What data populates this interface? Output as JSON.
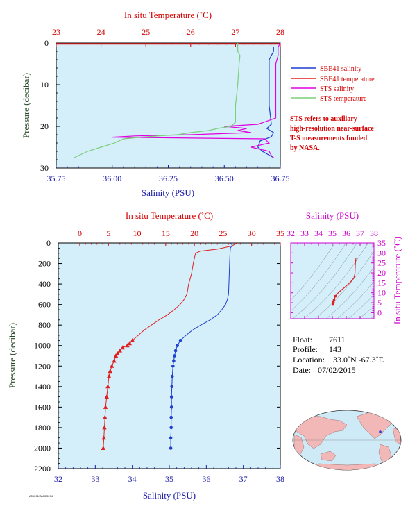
{
  "colors": {
    "salinity_axis": "#1a1aa8",
    "temperature_axis": "#d40000",
    "pressure_axis": "#2a4a2a",
    "inset_axis": "#cc00cc",
    "plot_bg": "#d4eefa",
    "sbe_salinity": "#1f3fd0",
    "sbe_temperature": "#e02020",
    "sts_salinity": "#e000e0",
    "sts_temperature": "#7ad07a"
  },
  "top_panel": {
    "temperature_title": "In situ Temperature (˚C)",
    "salinity_title": "Salinity (PSU)",
    "pressure_title": "Pressure (decibar)",
    "temperature_ticks": [
      "23",
      "24",
      "25",
      "26",
      "27",
      "28"
    ],
    "salinity_ticks": [
      "35.75",
      "36.00",
      "36.25",
      "36.50",
      "36.75"
    ],
    "pressure_ticks": [
      "0",
      "10",
      "20",
      "30"
    ]
  },
  "legend": {
    "items": [
      {
        "label": "SBE41 salinity",
        "color_key": "sbe_salinity"
      },
      {
        "label": "SBE41 temperature",
        "color_key": "sbe_temperature"
      },
      {
        "label": "STS salinity",
        "color_key": "sts_salinity"
      },
      {
        "label": "STS temperature",
        "color_key": "sts_temperature"
      }
    ]
  },
  "note": {
    "lines": [
      "STS refers to auxiliary",
      "high-resolution near-surface",
      "T-S measurements funded",
      "by NASA."
    ]
  },
  "main_panel": {
    "temperature_title": "In situ Temperature (˚C)",
    "salinity_title": "Salinity (PSU)",
    "pressure_title": "Pressure (decibar)",
    "temperature_ticks": [
      "0",
      "5",
      "10",
      "15",
      "20",
      "25",
      "30",
      "35"
    ],
    "salinity_ticks": [
      "32",
      "33",
      "34",
      "35",
      "36",
      "37",
      "38"
    ],
    "pressure_ticks": [
      "0",
      "200",
      "400",
      "600",
      "800",
      "1000",
      "1200",
      "1400",
      "1600",
      "1800",
      "2000",
      "2200"
    ]
  },
  "inset_panel": {
    "salinity_title": "Salinity (PSU)",
    "temperature_title": "In situ Temperature (˚C)",
    "salinity_ticks": [
      "32",
      "33",
      "34",
      "35",
      "36",
      "37",
      "38"
    ],
    "temperature_ticks": [
      "0",
      "5",
      "10",
      "15",
      "20",
      "25",
      "30",
      "35"
    ]
  },
  "info": {
    "float_label": "Float:",
    "float_value": "7611",
    "profile_label": "Profile:",
    "profile_value": "143",
    "location_label": "Location:",
    "location_value": "33.0˚N  -67.3˚E",
    "date_label": "Date:",
    "date_value": "07/02/2015"
  },
  "footer": {
    "code": "A00091/TA30G074"
  },
  "chart_data": [
    {
      "type": "line",
      "name": "near-surface profile",
      "x_top_label": "In situ Temperature (˚C)",
      "x_bottom_label": "Salinity (PSU)",
      "ylabel": "Pressure (decibar)",
      "temperature_lim": [
        23,
        28
      ],
      "salinity_lim": [
        35.75,
        36.75
      ],
      "pressure_lim": [
        0,
        30
      ],
      "y_inverted": true,
      "series": [
        {
          "name": "SBE41 salinity",
          "axis": "salinity",
          "color_key": "sbe_salinity",
          "p": [
            1,
            2,
            4,
            6,
            10,
            15,
            19.5,
            20.5,
            21.5,
            22.5,
            23.5,
            25,
            26,
            27.5
          ],
          "v": [
            36.72,
            36.72,
            36.7,
            36.7,
            36.7,
            36.7,
            36.71,
            36.69,
            36.72,
            36.71,
            36.66,
            36.65,
            36.67,
            36.72
          ]
        },
        {
          "name": "SBE41 temperature",
          "axis": "temperature",
          "color_key": "sbe_temperature",
          "p": [
            0.2,
            0.2
          ],
          "v": [
            23.0,
            28.0
          ]
        },
        {
          "name": "STS salinity",
          "axis": "salinity",
          "color_key": "sts_salinity",
          "p": [
            0,
            1,
            3,
            5,
            8,
            12,
            15,
            18,
            19.5,
            20,
            20.5,
            21,
            21.5,
            22,
            22.3,
            22.6,
            23,
            24,
            25,
            26,
            27,
            27.5
          ],
          "v": [
            36.75,
            36.74,
            36.74,
            36.73,
            36.73,
            36.73,
            36.73,
            36.73,
            36.65,
            36.5,
            36.6,
            36.56,
            36.62,
            36.35,
            36.1,
            36.0,
            36.68,
            36.7,
            36.62,
            36.7,
            36.71,
            36.72
          ]
        },
        {
          "name": "STS temperature",
          "axis": "temperature",
          "color_key": "sts_temperature",
          "p": [
            0,
            1,
            2,
            3,
            5,
            10,
            15,
            19,
            20,
            20.5,
            21,
            21.5,
            22,
            22.5,
            23,
            24,
            25,
            26,
            27,
            27.5
          ],
          "v": [
            27.05,
            27.05,
            27.05,
            27.1,
            27.08,
            27.05,
            27.0,
            27.0,
            26.9,
            26.6,
            26.4,
            26.0,
            25.7,
            25.0,
            24.5,
            24.3,
            24.0,
            23.7,
            23.5,
            23.4
          ]
        }
      ]
    },
    {
      "type": "line",
      "name": "full-depth profile",
      "x_top_label": "In situ Temperature (˚C)",
      "x_bottom_label": "Salinity (PSU)",
      "ylabel": "Pressure (decibar)",
      "temperature_lim": [
        -3.75,
        35
      ],
      "salinity_lim": [
        32,
        38
      ],
      "pressure_lim": [
        0,
        2200
      ],
      "y_inverted": true,
      "series": [
        {
          "name": "temperature",
          "axis": "temperature",
          "color_key": "sbe_temperature",
          "marker": "triangle",
          "p": [
            0,
            30,
            60,
            80,
            100,
            150,
            200,
            300,
            400,
            500,
            550,
            600,
            650,
            700,
            750,
            800,
            850,
            900,
            950,
            980,
            1000,
            1020,
            1050,
            1080,
            1100,
            1150,
            1200,
            1250,
            1300,
            1400,
            1500,
            1600,
            1700,
            1800,
            1900,
            2000
          ],
          "v": [
            27.5,
            26.5,
            24,
            21,
            20.2,
            20.0,
            19.8,
            19.5,
            19.0,
            18.7,
            18.2,
            17.5,
            16.5,
            15.3,
            13.8,
            12.5,
            11.2,
            10.2,
            9.2,
            8.7,
            8.3,
            7.5,
            7.0,
            6.6,
            6.3,
            6.0,
            5.6,
            5.3,
            5.1,
            4.9,
            4.7,
            4.5,
            4.4,
            4.3,
            4.2,
            4.1
          ]
        },
        {
          "name": "salinity",
          "axis": "salinity",
          "color_key": "sbe_salinity",
          "marker": "circle",
          "p": [
            0,
            20,
            50,
            100,
            200,
            300,
            400,
            500,
            550,
            600,
            650,
            700,
            750,
            800,
            850,
            900,
            950,
            1000,
            1050,
            1100,
            1150,
            1200,
            1300,
            1400,
            1500,
            1600,
            1700,
            1800,
            1900,
            2000
          ],
          "v": [
            36.65,
            36.7,
            36.65,
            36.64,
            36.63,
            36.62,
            36.61,
            36.6,
            36.57,
            36.52,
            36.42,
            36.3,
            36.1,
            35.85,
            35.62,
            35.45,
            35.3,
            35.22,
            35.17,
            35.14,
            35.12,
            35.1,
            35.08,
            35.07,
            35.06,
            35.06,
            35.05,
            35.05,
            35.04,
            35.04
          ]
        }
      ]
    },
    {
      "type": "scatter",
      "name": "T-S diagram",
      "xlabel": "Salinity (PSU)",
      "ylabel": "In situ Temperature (˚C)",
      "xlim": [
        32,
        38
      ],
      "ylim": [
        -3,
        35
      ],
      "series": [
        {
          "name": "T-S",
          "color_key": "sbe_temperature",
          "x": [
            36.7,
            36.65,
            36.63,
            36.61,
            36.55,
            36.3,
            35.85,
            35.45,
            35.22,
            35.12,
            35.08,
            35.06,
            35.04
          ],
          "y": [
            27.5,
            24,
            20,
            19,
            17.5,
            15.3,
            12.5,
            10.2,
            8.3,
            6.3,
            5.3,
            4.6,
            4.1
          ]
        }
      ]
    }
  ]
}
